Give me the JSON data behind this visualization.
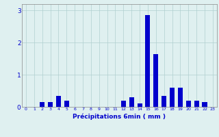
{
  "hours": [
    0,
    1,
    2,
    3,
    4,
    5,
    6,
    7,
    8,
    9,
    10,
    11,
    12,
    13,
    14,
    15,
    16,
    17,
    18,
    19,
    20,
    21,
    22,
    23
  ],
  "values": [
    0,
    0,
    0.15,
    0.15,
    0.35,
    0.2,
    0,
    0,
    0,
    0,
    0,
    0,
    0.2,
    0.3,
    0.1,
    2.85,
    1.65,
    0.35,
    0.6,
    0.6,
    0.2,
    0.2,
    0.15,
    0
  ],
  "bar_color": "#0000cc",
  "bg_color": "#dff0f0",
  "grid_color": "#b0d0d0",
  "axis_color": "#888888",
  "xlabel": "Précipitations 6min ( mm )",
  "xlabel_color": "#0000cc",
  "ylim": [
    0,
    3.2
  ],
  "yticks": [
    0,
    1,
    2,
    3
  ],
  "figsize": [
    3.2,
    2.0
  ],
  "dpi": 100
}
